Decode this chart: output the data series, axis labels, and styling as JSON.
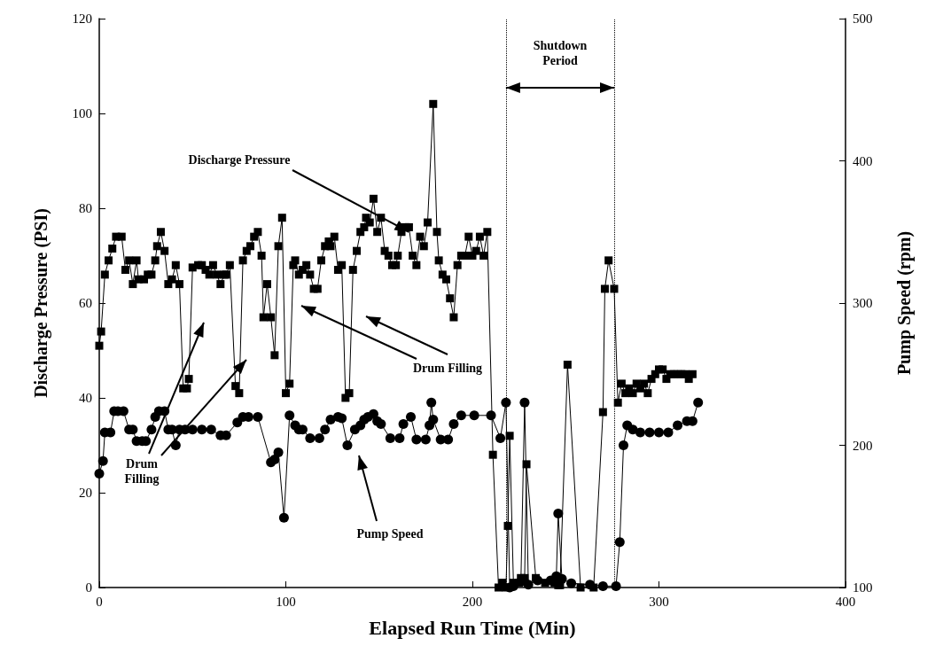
{
  "chart_data": {
    "type": "line",
    "xlabel": "Elapsed Run Time (Min)",
    "ylabel": "Discharge Pressure (PSI)",
    "y2label": "Pump Speed (rpm)",
    "xlim": [
      0,
      400
    ],
    "xticks": [
      0,
      100,
      200,
      300,
      400
    ],
    "ylim": [
      0,
      120
    ],
    "yticks": [
      0,
      20,
      40,
      60,
      80,
      100,
      120
    ],
    "y2lim": [
      100,
      500
    ],
    "y2ticks": [
      100,
      200,
      300,
      400,
      500
    ],
    "grid": false,
    "legend": false,
    "line_style": "solid",
    "series": [
      {
        "color": "#000000",
        "marker": "square",
        "x": [
          0,
          1,
          3,
          5,
          7,
          9,
          12,
          14,
          16,
          18,
          20,
          21,
          24,
          26,
          28,
          30,
          31,
          33,
          35,
          37,
          39,
          41,
          43,
          45,
          47,
          48,
          50,
          53,
          55,
          57,
          59,
          61,
          63,
          65,
          67,
          68,
          70,
          73,
          75,
          77,
          79,
          81,
          83,
          85,
          87,
          88,
          90,
          92,
          94,
          96,
          98,
          100,
          102,
          104,
          105,
          107,
          109,
          111,
          113,
          115,
          117,
          119,
          121,
          123,
          124,
          126,
          128,
          130,
          132,
          134,
          136,
          138,
          140,
          142,
          143,
          145,
          147,
          149,
          151,
          153,
          155,
          157,
          159,
          160,
          162,
          164,
          166,
          168,
          170,
          172,
          174,
          176,
          179,
          181,
          182,
          184,
          186,
          188,
          190,
          192,
          194,
          196,
          198,
          200,
          202,
          204,
          206,
          208,
          211,
          214,
          216,
          218,
          219,
          220,
          222,
          225,
          226,
          228,
          229,
          234,
          239,
          244,
          246,
          247,
          251,
          258,
          265,
          270,
          271,
          273,
          276,
          278,
          280,
          282,
          284,
          286,
          288,
          290,
          292,
          294,
          296,
          298,
          300,
          302,
          304,
          306,
          308,
          310,
          312,
          314,
          316,
          318
        ],
        "values": [
          51,
          54,
          66,
          69,
          71.5,
          74,
          74,
          67,
          69,
          64,
          69,
          65,
          65,
          66,
          66,
          69,
          72,
          75,
          71,
          64,
          65,
          68,
          64,
          42,
          42,
          44,
          67.5,
          68,
          68,
          67,
          66,
          68,
          66,
          64,
          66,
          66,
          68,
          42.5,
          41,
          69,
          71,
          72,
          74,
          75,
          70,
          57,
          64,
          57,
          49,
          72,
          78,
          41,
          43,
          68,
          69,
          66,
          67,
          68,
          66,
          63,
          63,
          69,
          72,
          73,
          72,
          74,
          67,
          68,
          40,
          41,
          67,
          71,
          75,
          76,
          78,
          77,
          82,
          75,
          78,
          71,
          70,
          68,
          68,
          70,
          75,
          76,
          76,
          70,
          68,
          74,
          72,
          77,
          102,
          75,
          69,
          66,
          65,
          61,
          57,
          68,
          70,
          70,
          74,
          70,
          71,
          74,
          70,
          75,
          28,
          0,
          1,
          0,
          13,
          32,
          1,
          1,
          2,
          2,
          26,
          2,
          1,
          1,
          0.5,
          0.5,
          47,
          0,
          0,
          37,
          63,
          69,
          63,
          39,
          43,
          41,
          42,
          41,
          43,
          42,
          43,
          41,
          44,
          45,
          46,
          46,
          44,
          45,
          45,
          45,
          45,
          45,
          44,
          45
        ]
      },
      {
        "color": "#000000",
        "marker": "circle",
        "axis": "y2",
        "x": [
          0,
          2,
          3,
          6,
          8,
          10,
          13,
          16,
          18,
          20,
          23,
          25,
          28,
          30,
          32,
          35,
          37,
          39,
          41,
          43,
          46,
          50,
          55,
          60,
          65,
          68,
          74,
          77,
          80,
          85,
          92,
          94,
          96,
          99,
          102,
          105,
          107,
          109,
          113,
          118,
          121,
          124,
          128,
          130,
          133,
          137,
          140,
          142,
          144,
          147,
          149,
          151,
          156,
          161,
          163,
          167,
          170,
          175,
          177,
          178,
          179,
          183,
          187,
          190,
          194,
          201,
          210,
          215,
          218,
          220,
          222,
          226,
          228,
          230,
          235,
          242,
          245,
          246,
          248,
          253,
          263,
          270,
          277,
          279,
          281,
          283,
          286,
          290,
          295,
          300,
          305,
          310,
          315,
          318,
          321
        ],
        "values": [
          180,
          189,
          209,
          209,
          224,
          224,
          224,
          211,
          211,
          203,
          203,
          203,
          211,
          220,
          224,
          224,
          211,
          211,
          200,
          211,
          211,
          211,
          211,
          211,
          207,
          207,
          216,
          220,
          220,
          220,
          188,
          190,
          195,
          149,
          221,
          214,
          211,
          211,
          205,
          205,
          211,
          218,
          220,
          219,
          200,
          211,
          214,
          218,
          220,
          222,
          217,
          215,
          205,
          205,
          215,
          220,
          204,
          204,
          214,
          230,
          218,
          204,
          204,
          215,
          221,
          221,
          221,
          205,
          230,
          100,
          101,
          104,
          230,
          102,
          105,
          105,
          108,
          152,
          106,
          103,
          102,
          101,
          101,
          132,
          200,
          214,
          211,
          209,
          209,
          209,
          209,
          214,
          217,
          217,
          230
        ]
      }
    ],
    "ref_lines": [
      {
        "axis": "x",
        "value": 218,
        "line_style": "dotted",
        "color": "#000000"
      },
      {
        "axis": "x",
        "value": 276,
        "line_style": "dotted",
        "color": "#000000"
      }
    ],
    "annotations": [
      {
        "text": "Discharge Pressure",
        "x": 166,
        "y": 75
      },
      "Drum Filling",
      "Drum Filling",
      "Pump Speed",
      "Shutdown Period"
    ]
  }
}
